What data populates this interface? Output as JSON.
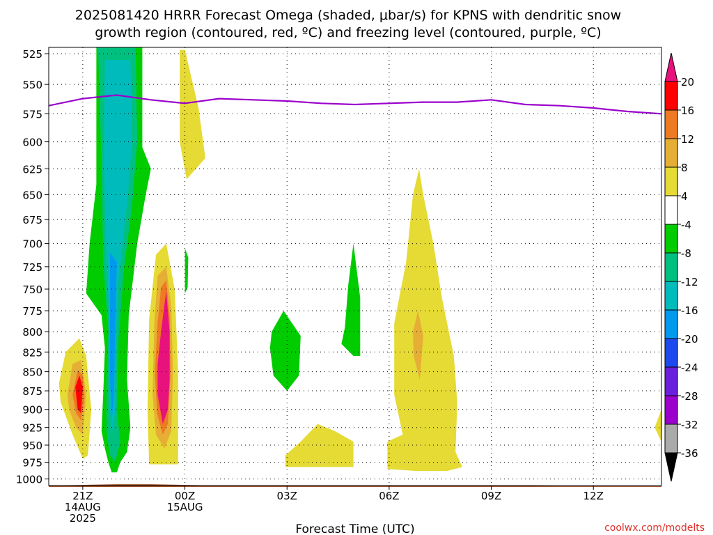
{
  "chart_data": {
    "type": "contour",
    "title_line1": "2025081420 HRRR Forecast Omega (shaded, μbar/s) for KPNS with dendritic snow",
    "title_line2": "growth region (contoured, red, ºC) and freezing level (contoured, purple, ºC)",
    "xlabel": "Forecast Time (UTC)",
    "credit": "coolwx.com/modelts",
    "y_axis": {
      "ticks": [
        525,
        550,
        575,
        600,
        625,
        650,
        675,
        700,
        725,
        750,
        775,
        800,
        825,
        850,
        875,
        900,
        925,
        950,
        975,
        1000
      ],
      "range": [
        520,
        1010
      ],
      "scale": "log",
      "inverted": true
    },
    "x_axis": {
      "range_hours": [
        -1.0,
        17.0
      ],
      "ticks": [
        {
          "hour": 0,
          "label": "21Z",
          "sub1": "14AUG",
          "sub2": "2025"
        },
        {
          "hour": 3,
          "label": "00Z",
          "sub1": "15AUG",
          "sub2": ""
        },
        {
          "hour": 6,
          "label": "03Z",
          "sub1": "",
          "sub2": ""
        },
        {
          "hour": 9,
          "label": "06Z",
          "sub1": "",
          "sub2": ""
        },
        {
          "hour": 12,
          "label": "09Z",
          "sub1": "",
          "sub2": ""
        },
        {
          "hour": 15,
          "label": "12Z",
          "sub1": "",
          "sub2": ""
        }
      ]
    },
    "grid": "dotted",
    "colorbar": {
      "labels": [
        "20",
        "16",
        "12",
        "8",
        "4",
        "-4",
        "-8",
        "-12",
        "-16",
        "-20",
        "-24",
        "-28",
        "-32",
        "-36"
      ],
      "colors": [
        "#ff0000",
        "#ee7a22",
        "#e6ae35",
        "#e6da34",
        "#ffffff",
        "#00cc00",
        "#00c080",
        "#00bbbb",
        "#0099ee",
        "#1d49ee",
        "#6a1fdc",
        "#9b00cc",
        "#aaaaaa"
      ],
      "top_arrow_color": "#e8127c",
      "bottom_arrow_color": "#000000"
    },
    "freezing_level": {
      "name": "freezing level",
      "color": "#9b00cc",
      "points": [
        [
          -1.0,
          568
        ],
        [
          0.0,
          562
        ],
        [
          1.0,
          559
        ],
        [
          2.0,
          563
        ],
        [
          3.0,
          566
        ],
        [
          4.0,
          562
        ],
        [
          5.0,
          563
        ],
        [
          6.0,
          564
        ],
        [
          7.0,
          566
        ],
        [
          8.0,
          567
        ],
        [
          9.0,
          566
        ],
        [
          10.0,
          565
        ],
        [
          11.0,
          565
        ],
        [
          12.0,
          563
        ],
        [
          13.0,
          567
        ],
        [
          14.0,
          568
        ],
        [
          15.0,
          570
        ],
        [
          16.0,
          573
        ],
        [
          17.0,
          575
        ]
      ]
    },
    "omega_regions": [
      {
        "color": "#00cc00",
        "points": [
          [
            0.4,
            520
          ],
          [
            1.75,
            520
          ],
          [
            1.75,
            605
          ],
          [
            2.0,
            625
          ],
          [
            1.85,
            650
          ],
          [
            1.6,
            700
          ],
          [
            1.35,
            780
          ],
          [
            1.3,
            860
          ],
          [
            1.4,
            925
          ],
          [
            1.3,
            960
          ],
          [
            1.1,
            975
          ],
          [
            1.0,
            990
          ],
          [
            0.85,
            990
          ],
          [
            0.75,
            975
          ],
          [
            0.65,
            955
          ],
          [
            0.55,
            930
          ],
          [
            0.6,
            880
          ],
          [
            0.65,
            820
          ],
          [
            0.55,
            780
          ],
          [
            0.1,
            755
          ],
          [
            0.2,
            700
          ],
          [
            0.4,
            640
          ]
        ]
      },
      {
        "color": "#00c080",
        "points": [
          [
            0.45,
            520
          ],
          [
            1.55,
            520
          ],
          [
            1.6,
            600
          ],
          [
            1.45,
            660
          ],
          [
            1.2,
            730
          ],
          [
            1.05,
            810
          ],
          [
            1.0,
            900
          ],
          [
            1.1,
            945
          ],
          [
            0.95,
            975
          ],
          [
            0.8,
            965
          ],
          [
            0.7,
            930
          ],
          [
            0.7,
            860
          ],
          [
            0.75,
            800
          ],
          [
            0.6,
            720
          ],
          [
            0.55,
            620
          ]
        ]
      },
      {
        "color": "#00bbbb",
        "points": [
          [
            0.65,
            530
          ],
          [
            1.4,
            530
          ],
          [
            1.45,
            600
          ],
          [
            1.3,
            660
          ],
          [
            1.05,
            740
          ],
          [
            0.95,
            830
          ],
          [
            0.95,
            905
          ],
          [
            0.85,
            935
          ],
          [
            0.78,
            890
          ],
          [
            0.8,
            800
          ],
          [
            0.7,
            720
          ],
          [
            0.62,
            620
          ]
        ]
      },
      {
        "color": "#0099ee",
        "points": [
          [
            0.8,
            710
          ],
          [
            1.0,
            720
          ],
          [
            0.95,
            800
          ],
          [
            0.92,
            880
          ],
          [
            0.85,
            915
          ],
          [
            0.8,
            860
          ],
          [
            0.8,
            780
          ]
        ]
      },
      {
        "color": "#e6da34",
        "points": [
          [
            -0.7,
            865
          ],
          [
            -0.5,
            825
          ],
          [
            -0.1,
            808
          ],
          [
            0.1,
            830
          ],
          [
            0.25,
            900
          ],
          [
            0.15,
            965
          ],
          [
            0.0,
            970
          ],
          [
            -0.3,
            935
          ],
          [
            -0.65,
            890
          ]
        ]
      },
      {
        "color": "#e6ae35",
        "points": [
          [
            -0.45,
            880
          ],
          [
            -0.3,
            840
          ],
          [
            -0.05,
            835
          ],
          [
            0.1,
            880
          ],
          [
            0.0,
            935
          ],
          [
            -0.2,
            925
          ],
          [
            -0.4,
            900
          ]
        ]
      },
      {
        "color": "#ee7a22",
        "points": [
          [
            -0.3,
            880
          ],
          [
            -0.15,
            848
          ],
          [
            0.0,
            855
          ],
          [
            0.05,
            885
          ],
          [
            -0.05,
            915
          ],
          [
            -0.2,
            905
          ]
        ]
      },
      {
        "color": "#ff0000",
        "points": [
          [
            -0.22,
            870
          ],
          [
            -0.1,
            855
          ],
          [
            0.0,
            870
          ],
          [
            -0.05,
            905
          ],
          [
            -0.15,
            900
          ]
        ]
      },
      {
        "color": "#e6da34",
        "points": [
          [
            1.95,
            785
          ],
          [
            2.15,
            712
          ],
          [
            2.45,
            700
          ],
          [
            2.7,
            750
          ],
          [
            2.8,
            850
          ],
          [
            2.8,
            978
          ],
          [
            1.95,
            978
          ],
          [
            1.9,
            900
          ]
        ]
      },
      {
        "color": "#e6ae35",
        "points": [
          [
            2.1,
            790
          ],
          [
            2.2,
            735
          ],
          [
            2.45,
            725
          ],
          [
            2.6,
            770
          ],
          [
            2.65,
            850
          ],
          [
            2.6,
            930
          ],
          [
            2.4,
            955
          ],
          [
            2.15,
            935
          ],
          [
            2.05,
            880
          ]
        ]
      },
      {
        "color": "#ee7a22",
        "points": [
          [
            2.2,
            790
          ],
          [
            2.3,
            748
          ],
          [
            2.45,
            740
          ],
          [
            2.55,
            780
          ],
          [
            2.58,
            850
          ],
          [
            2.5,
            920
          ],
          [
            2.35,
            935
          ],
          [
            2.18,
            905
          ],
          [
            2.12,
            850
          ]
        ]
      },
      {
        "color": "#e8127c",
        "points": [
          [
            2.3,
            800
          ],
          [
            2.45,
            752
          ],
          [
            2.55,
            800
          ],
          [
            2.55,
            860
          ],
          [
            2.5,
            900
          ],
          [
            2.35,
            920
          ],
          [
            2.2,
            880
          ],
          [
            2.2,
            840
          ]
        ]
      },
      {
        "color": "#e6da34",
        "points": [
          [
            2.85,
            522
          ],
          [
            3.0,
            522
          ],
          [
            3.4,
            570
          ],
          [
            3.6,
            615
          ],
          [
            3.05,
            635
          ],
          [
            2.85,
            600
          ]
        ]
      },
      {
        "color": "#00cc00",
        "points": [
          [
            3.0,
            705
          ],
          [
            3.1,
            715
          ],
          [
            3.08,
            748
          ],
          [
            3.0,
            755
          ]
        ]
      },
      {
        "color": "#00cc00",
        "points": [
          [
            5.6,
            855
          ],
          [
            5.5,
            820
          ],
          [
            5.55,
            800
          ],
          [
            5.9,
            775
          ],
          [
            6.4,
            805
          ],
          [
            6.35,
            855
          ],
          [
            6.0,
            875
          ]
        ]
      },
      {
        "color": "#00cc00",
        "points": [
          [
            7.6,
            815
          ],
          [
            7.7,
            795
          ],
          [
            7.8,
            745
          ],
          [
            7.95,
            700
          ],
          [
            8.15,
            760
          ],
          [
            8.15,
            830
          ],
          [
            7.95,
            830
          ]
        ]
      },
      {
        "color": "#e6da34",
        "points": [
          [
            5.95,
            982
          ],
          [
            5.95,
            965
          ],
          [
            6.4,
            945
          ],
          [
            6.9,
            920
          ],
          [
            7.4,
            930
          ],
          [
            7.95,
            945
          ],
          [
            7.95,
            982
          ]
        ]
      },
      {
        "color": "#e6da34",
        "points": [
          [
            8.95,
            985
          ],
          [
            8.95,
            945
          ],
          [
            9.4,
            935
          ],
          [
            9.15,
            880
          ],
          [
            9.15,
            790
          ],
          [
            9.5,
            720
          ],
          [
            9.7,
            650
          ],
          [
            9.88,
            625
          ],
          [
            10.0,
            650
          ],
          [
            10.3,
            700
          ],
          [
            10.55,
            760
          ],
          [
            10.9,
            830
          ],
          [
            11.0,
            890
          ],
          [
            10.95,
            960
          ],
          [
            11.15,
            982
          ],
          [
            10.7,
            988
          ],
          [
            9.8,
            988
          ]
        ]
      },
      {
        "color": "#e6ae35",
        "points": [
          [
            9.7,
            800
          ],
          [
            9.85,
            775
          ],
          [
            10.0,
            805
          ],
          [
            9.9,
            860
          ],
          [
            9.72,
            830
          ]
        ]
      },
      {
        "color": "#e6da34",
        "points": [
          [
            17.0,
            900
          ],
          [
            16.8,
            925
          ],
          [
            17.0,
            945
          ]
        ]
      }
    ],
    "terrain": {
      "color": "#a0522d",
      "points": [
        [
          -1.0,
          1010
        ],
        [
          0.0,
          1009
        ],
        [
          1.0,
          1008
        ],
        [
          2.0,
          1008
        ],
        [
          3.0,
          1009
        ],
        [
          4.0,
          1010
        ],
        [
          6.0,
          1010
        ],
        [
          8.0,
          1010
        ],
        [
          10.0,
          1010
        ],
        [
          12.0,
          1010
        ],
        [
          14.0,
          1011
        ],
        [
          15.0,
          1011
        ],
        [
          17.0,
          1011
        ]
      ]
    }
  }
}
